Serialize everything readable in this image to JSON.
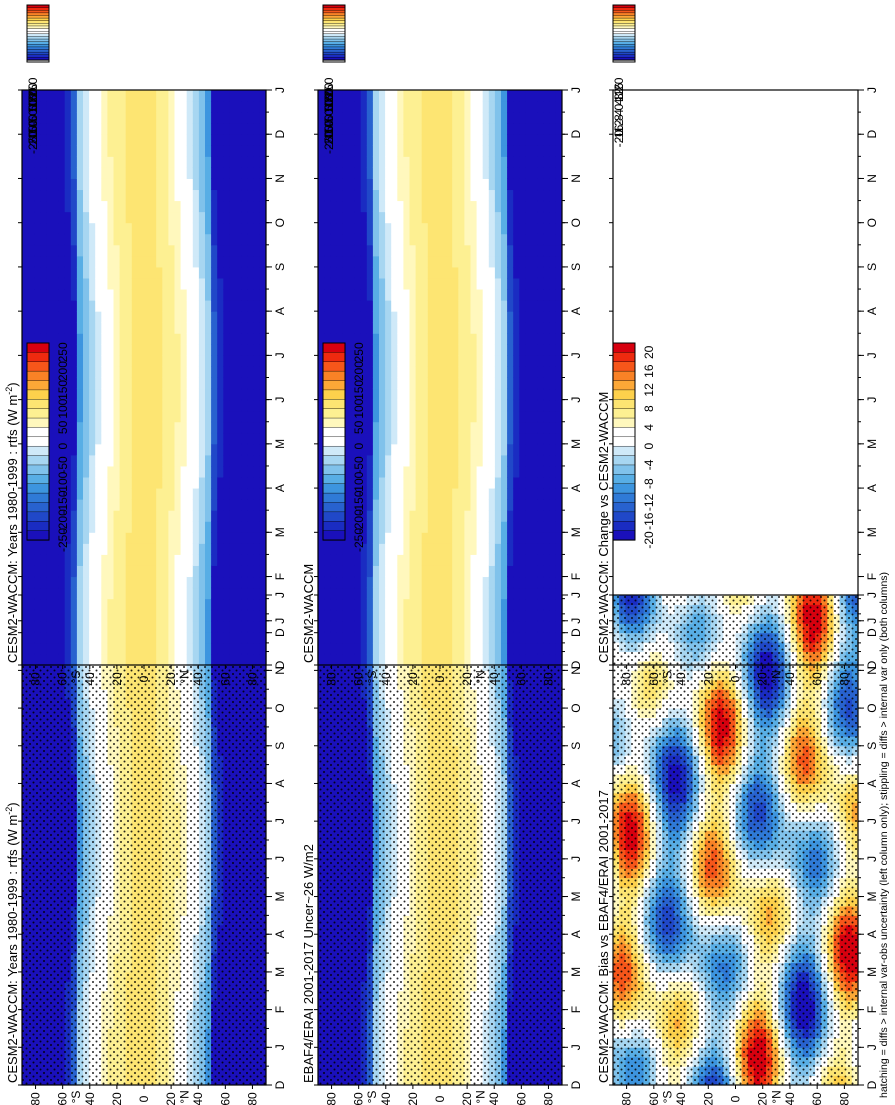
{
  "figure": {
    "footer": "hatching = diffs > internal var-obs uncertainty (left column only); stippling = diffs > internal var only (both columns)",
    "month_labels": [
      "D",
      "J",
      "F",
      "M",
      "A",
      "M",
      "J",
      "J",
      "A",
      "S",
      "O",
      "N",
      "D",
      "J"
    ],
    "lat_labels": [
      "80",
      "60",
      "40",
      "20",
      "0",
      "20",
      "40",
      "60",
      "80"
    ],
    "lat_values": [
      -80,
      -60,
      -40,
      -20,
      0,
      20,
      40,
      60,
      80
    ],
    "lat_hemisphere_labels": [
      "°S",
      "°N"
    ],
    "rtfs_colorbar_labels": [
      "250",
      "200",
      "150",
      "100",
      "50",
      "0",
      "-50",
      "-100",
      "-150",
      "-200",
      "-250"
    ],
    "bias_colorbar_labels": [
      "20",
      "16",
      "12",
      "8",
      "4",
      "0",
      "-4",
      "-8",
      "-12",
      "-16",
      "-20"
    ],
    "colorbar_colors": {
      "rtfs": [
        "#d7000f",
        "#ee2a0f",
        "#f6561a",
        "#f98226",
        "#fca837",
        "#fdd14c",
        "#fde572",
        "#fdf092",
        "#fff8bd",
        "#ffffff",
        "#ffffff",
        "#cfe9f8",
        "#a7d6f1",
        "#80c2eb",
        "#58aee5",
        "#3d95df",
        "#2f7ad7",
        "#2862cf",
        "#2048c8",
        "#1a2cc2",
        "#1a10bb"
      ],
      "bias": [
        "#d7000f",
        "#ee2a0f",
        "#f6561a",
        "#f98226",
        "#fca837",
        "#fdd14c",
        "#fde572",
        "#fdf092",
        "#fff8bd",
        "#ffffff",
        "#ffffff",
        "#cfe9f8",
        "#a7d6f1",
        "#80c2eb",
        "#58aee5",
        "#3d95df",
        "#2f7ad7",
        "#2862cf",
        "#2048c8",
        "#1a2cc2",
        "#1a10bb"
      ]
    }
  },
  "chart_data": [
    {
      "type": "heatmap",
      "panel": "left-top",
      "title": "CESM2-WACCM: Years 1980-1999 : rtfs (W m",
      "title_sup": "-2",
      "title_end": ")",
      "x": "month (Dec..Jan)",
      "y": "latitude",
      "zlim": [
        -250,
        250
      ],
      "stippling": true
    },
    {
      "type": "heatmap",
      "panel": "right-top",
      "title": "CESM2-WACCM: Years 1980-1999 : rtfs (W m",
      "title_sup": "-2",
      "title_end": ")",
      "zlim": [
        -250,
        250
      ],
      "stippling": false
    },
    {
      "type": "heatmap",
      "panel": "left-middle",
      "title": "EBAF4/ERAI 2001-2017 Uncer~26 W/m2",
      "zlim": [
        -250,
        250
      ],
      "stippling": true
    },
    {
      "type": "heatmap",
      "panel": "right-middle",
      "title": "CESM2-WACCM",
      "zlim": [
        -250,
        250
      ],
      "stippling": false
    },
    {
      "type": "heatmap",
      "panel": "left-bottom",
      "title": "CESM2-WACCM: Bias vs EBAF4/ERAI 2001-2017",
      "zlim": [
        -20,
        20
      ],
      "stippling": true
    },
    {
      "type": "heatmap",
      "panel": "right-bottom",
      "title": "CESM2-WACCM: Change vs CESM2-WACCM",
      "zlim": [
        -20,
        20
      ],
      "stippling": false,
      "empty": true
    }
  ]
}
